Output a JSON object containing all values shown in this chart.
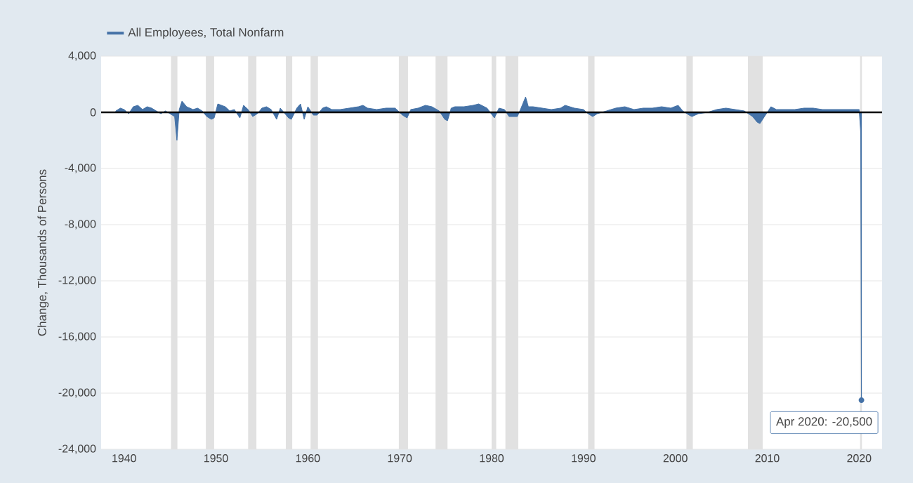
{
  "chart_data": {
    "type": "area",
    "ylabel": "Change, Thousands of Persons",
    "x": [
      1939.1,
      1939.6,
      1940.0,
      1940.5,
      1941.0,
      1941.5,
      1942.0,
      1942.5,
      1943.0,
      1943.5,
      1944.0,
      1944.5,
      1945.0,
      1945.5,
      1945.75,
      1946.0,
      1946.3,
      1946.8,
      1947.5,
      1948.0,
      1948.5,
      1949.0,
      1949.5,
      1949.8,
      1950.2,
      1950.6,
      1951.0,
      1951.5,
      1952.0,
      1952.6,
      1953.0,
      1953.5,
      1954.0,
      1954.5,
      1955.0,
      1955.5,
      1956.0,
      1956.6,
      1957.0,
      1957.9,
      1958.2,
      1958.8,
      1959.2,
      1959.6,
      1960.0,
      1960.6,
      1961.0,
      1961.6,
      1962.0,
      1962.6,
      1963.5,
      1964.5,
      1965.5,
      1966.0,
      1966.5,
      1967.5,
      1968.5,
      1969.5,
      1970.3,
      1970.8,
      1971.2,
      1972.0,
      1972.8,
      1973.5,
      1974.3,
      1974.9,
      1975.2,
      1975.6,
      1976.0,
      1977.0,
      1978.0,
      1978.6,
      1979.5,
      1980.3,
      1980.8,
      1981.4,
      1981.9,
      1982.4,
      1982.8,
      1983.2,
      1983.7,
      1984.0,
      1984.5,
      1985.5,
      1986.5,
      1987.5,
      1988.0,
      1989.0,
      1990.0,
      1990.5,
      1991.0,
      1991.5,
      1992.5,
      1993.5,
      1994.5,
      1995.5,
      1996.5,
      1997.5,
      1998.5,
      1999.5,
      2000.3,
      2000.8,
      2001.5,
      2001.8,
      2002.5,
      2003.5,
      2004.5,
      2005.5,
      2006.5,
      2007.5,
      2008.4,
      2008.9,
      2009.2,
      2009.8,
      2010.4,
      2011.0,
      2012.0,
      2013.0,
      2014.0,
      2015.0,
      2016.0,
      2017.0,
      2018.0,
      2019.0,
      2020.0,
      2020.17,
      2020.25
    ],
    "series": [
      {
        "name": "All Employees, Total Nonfarm",
        "color": "#4572a7",
        "values": [
          100,
          300,
          200,
          -100,
          400,
          500,
          200,
          400,
          300,
          100,
          -100,
          100,
          -100,
          -300,
          -2000,
          200,
          800,
          400,
          200,
          300,
          100,
          -300,
          -500,
          -400,
          600,
          500,
          400,
          100,
          200,
          -400,
          500,
          200,
          -300,
          -100,
          300,
          400,
          200,
          -500,
          300,
          -400,
          -500,
          300,
          600,
          -500,
          400,
          -200,
          -200,
          300,
          400,
          200,
          200,
          300,
          400,
          500,
          300,
          200,
          300,
          300,
          -200,
          -400,
          200,
          300,
          500,
          400,
          100,
          -500,
          -600,
          300,
          400,
          400,
          500,
          600,
          300,
          -400,
          300,
          200,
          -300,
          -300,
          -300,
          300,
          1100,
          400,
          400,
          300,
          200,
          300,
          500,
          300,
          200,
          -100,
          -300,
          -100,
          100,
          300,
          400,
          200,
          300,
          300,
          400,
          300,
          500,
          100,
          -200,
          -300,
          -100,
          0,
          200,
          300,
          200,
          100,
          -300,
          -700,
          -800,
          -200,
          400,
          200,
          200,
          200,
          300,
          300,
          200,
          200,
          200,
          200,
          200,
          -1400,
          -20500
        ]
      }
    ],
    "xlim": [
      1937.5,
      2022.5
    ],
    "ylim": [
      -24000,
      4000
    ],
    "xticks": [
      1940,
      1950,
      1960,
      1970,
      1980,
      1990,
      2000,
      2010,
      2020
    ],
    "yticks": [
      {
        "value": -24000,
        "label": "-24,000"
      },
      {
        "value": -20000,
        "label": "-20,000"
      },
      {
        "value": -16000,
        "label": "-16,000"
      },
      {
        "value": -12000,
        "label": "-12,000"
      },
      {
        "value": -8000,
        "label": "-8,000"
      },
      {
        "value": -4000,
        "label": "-4,000"
      },
      0,
      {
        "value": 4000,
        "label": "4,000"
      }
    ],
    "grid": "y",
    "legend": "top left",
    "ref_lines": [
      {
        "axis": "y",
        "value": 0,
        "color": "#000000"
      }
    ],
    "bands": [
      {
        "axis": "x",
        "from": 1945.1,
        "to": 1945.8,
        "color": "#e1e1e1"
      },
      {
        "axis": "x",
        "from": 1948.9,
        "to": 1949.8,
        "color": "#e1e1e1"
      },
      {
        "axis": "x",
        "from": 1953.5,
        "to": 1954.4,
        "color": "#e1e1e1"
      },
      {
        "axis": "x",
        "from": 1957.6,
        "to": 1958.3,
        "color": "#e1e1e1"
      },
      {
        "axis": "x",
        "from": 1960.3,
        "to": 1961.1,
        "color": "#e1e1e1"
      },
      {
        "axis": "x",
        "from": 1969.9,
        "to": 1970.9,
        "color": "#e1e1e1"
      },
      {
        "axis": "x",
        "from": 1973.9,
        "to": 1975.2,
        "color": "#e1e1e1"
      },
      {
        "axis": "x",
        "from": 1980.0,
        "to": 1980.5,
        "color": "#e1e1e1"
      },
      {
        "axis": "x",
        "from": 1981.5,
        "to": 1982.9,
        "color": "#e1e1e1"
      },
      {
        "axis": "x",
        "from": 1990.5,
        "to": 1991.2,
        "color": "#e1e1e1"
      },
      {
        "axis": "x",
        "from": 2001.2,
        "to": 2001.9,
        "color": "#e1e1e1"
      },
      {
        "axis": "x",
        "from": 2007.9,
        "to": 2009.5,
        "color": "#e1e1e1"
      },
      {
        "axis": "x",
        "from": 2020.1,
        "to": 2020.3,
        "color": "#e1e1e1"
      }
    ],
    "annotations": [
      {
        "text": "Apr 2020: -20,500",
        "x": 2020.25,
        "y": -20500
      }
    ]
  }
}
